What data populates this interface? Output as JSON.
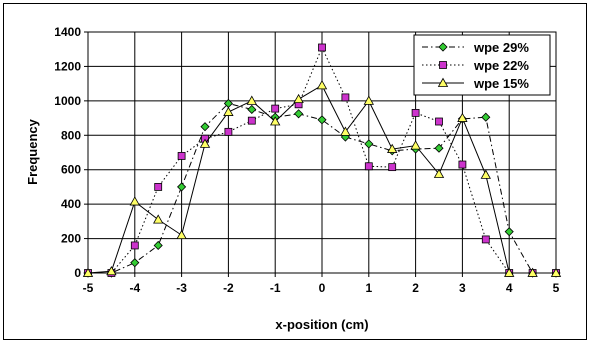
{
  "chart_data": {
    "type": "line",
    "title": "",
    "xlabel": "x-position (cm)",
    "ylabel": "Frequency",
    "xlim": [
      -5,
      5
    ],
    "ylim": [
      0,
      1400
    ],
    "x_ticks": [
      -5,
      -4,
      -3,
      -2,
      -1,
      0,
      1,
      2,
      3,
      4,
      5
    ],
    "y_ticks": [
      0,
      200,
      400,
      600,
      800,
      1000,
      1200,
      1400
    ],
    "grid": true,
    "legend_position": "top-right",
    "x": [
      -5,
      -4.5,
      -4,
      -3.5,
      -3,
      -2.5,
      -2,
      -1.5,
      -1,
      -0.5,
      0,
      0.5,
      1,
      1.5,
      2,
      2.5,
      3,
      3.5,
      4,
      4.5,
      5
    ],
    "series": [
      {
        "name": "wpe 29%",
        "marker": "diamond",
        "line": "dashdot",
        "marker_color": "#33cc33",
        "values": [
          0,
          0,
          60,
          160,
          500,
          850,
          985,
          950,
          905,
          925,
          890,
          790,
          750,
          710,
          720,
          725,
          895,
          905,
          240,
          0,
          0
        ]
      },
      {
        "name": "wpe 22%",
        "marker": "square",
        "line": "dotted",
        "marker_color": "#cc33cc",
        "values": [
          0,
          0,
          160,
          500,
          680,
          780,
          820,
          885,
          955,
          980,
          1310,
          1020,
          620,
          615,
          930,
          880,
          630,
          195,
          0,
          0,
          0
        ]
      },
      {
        "name": "wpe 15%",
        "marker": "triangle",
        "line": "solid",
        "marker_color": "#ffff66",
        "values": [
          0,
          10,
          415,
          310,
          220,
          750,
          935,
          1000,
          880,
          1010,
          1090,
          820,
          1000,
          720,
          740,
          575,
          900,
          570,
          0,
          0,
          0
        ]
      }
    ]
  }
}
